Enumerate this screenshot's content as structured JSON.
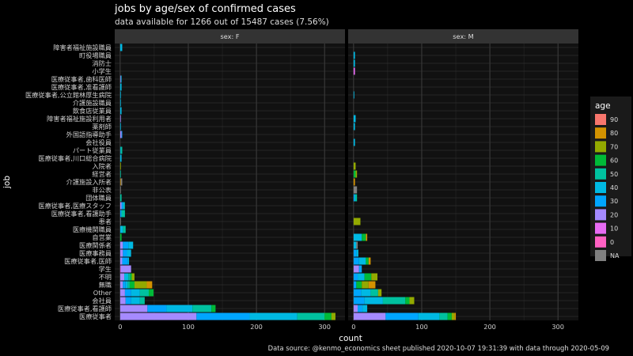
{
  "chart_data": {
    "type": "bar",
    "orientation": "horizontal",
    "stacked": true,
    "title": "jobs by age/sex of confirmed cases",
    "subtitle": "data available for 1266 out of 15487 cases (7.56%)",
    "xlabel": "count",
    "ylabel": "job",
    "caption": "Data source: @kenmo_economics sheet published 2020-10-07 19:31:39 with data through 2020-05-09",
    "xlim": [
      -8,
      330
    ],
    "x_ticks": [
      0,
      100,
      200,
      300
    ],
    "grid": true,
    "legend": {
      "title": "age",
      "position": "right",
      "entries": [
        {
          "label": "90",
          "color": "#F8766D"
        },
        {
          "label": "80",
          "color": "#D39200"
        },
        {
          "label": "70",
          "color": "#93AA00"
        },
        {
          "label": "60",
          "color": "#00BA38"
        },
        {
          "label": "50",
          "color": "#00C19F"
        },
        {
          "label": "40",
          "color": "#00B9E3"
        },
        {
          "label": "30",
          "color": "#00A5FF"
        },
        {
          "label": "20",
          "color": "#A58AFF"
        },
        {
          "label": "10",
          "color": "#E76BF3"
        },
        {
          "label": "0",
          "color": "#FF61C3"
        },
        {
          "label": "NA",
          "color": "#808080"
        }
      ]
    },
    "stack_order": [
      "0",
      "10",
      "20",
      "30",
      "40",
      "50",
      "60",
      "70",
      "80",
      "90",
      "NA"
    ],
    "categories": [
      "障害者福祉施設職員",
      "町役場職員",
      "消防士",
      "小学生",
      "医療従事者,歯科医師",
      "医療従事者,准看護師",
      "医療従事者,公立館林厚生病院",
      "介護施設職員",
      "飲食店従業員",
      "障害者福祉施設利用者",
      "薬剤師",
      "外国語指導助手",
      "会社役員",
      "パート従業員",
      "医療従事者,川口総合病院",
      "入院者",
      "経営者",
      "介護施設入所者",
      "非公表",
      "団体職員",
      "医療従事者,医療スタッフ",
      "医療従事者,看護助手",
      "患者",
      "医療機関職員",
      "自営業",
      "医療関係者",
      "医療事務員",
      "医療従事者,医師",
      "学生",
      "不明",
      "無職",
      "Other",
      "会社員",
      "医療従事者,看護師",
      "医療従事者"
    ],
    "panels": [
      {
        "label": "sex: F",
        "bars": [
          {
            "40": 3
          },
          {},
          {},
          {},
          {
            "20": 1,
            "40": 1
          },
          {
            "40": 2
          },
          {
            "40": 1
          },
          {
            "40": 1
          },
          {
            "40": 2
          },
          {
            "20": 1
          },
          {
            "40": 1
          },
          {
            "20": 2,
            "30": 1
          },
          {},
          {
            "40": 1,
            "50": 2
          },
          {
            "40": 2
          },
          {
            "70": 1
          },
          {
            "50": 1
          },
          {
            "80": 1,
            "NA": 2
          },
          {
            "NA": 1
          },
          {
            "50": 2
          },
          {
            "20": 2,
            "30": 2,
            "40": 2,
            "50": 1
          },
          {
            "30": 2,
            "50": 5
          },
          {
            "NA": 1
          },
          {
            "40": 4,
            "50": 4
          },
          {
            "60": 2
          },
          {
            "20": 4,
            "30": 8,
            "40": 7
          },
          {
            "20": 4,
            "30": 6,
            "40": 6
          },
          {
            "20": 3,
            "30": 8,
            "40": 2
          },
          {
            "10": 1,
            "20": 15
          },
          {
            "20": 6,
            "40": 6,
            "50": 3,
            "60": 2,
            "70": 4
          },
          {
            "20": 4,
            "30": 4,
            "40": 3,
            "50": 3,
            "60": 7,
            "70": 18,
            "80": 8
          },
          {
            "20": 7,
            "30": 9,
            "40": 13,
            "50": 13,
            "60": 7
          },
          {
            "20": 8,
            "30": 8,
            "40": 13,
            "50": 7
          },
          {
            "20": 40,
            "30": 28,
            "40": 38,
            "50": 28,
            "60": 6
          },
          {
            "20": 112,
            "30": 78,
            "40": 70,
            "50": 40,
            "60": 10,
            "70": 6
          }
        ]
      },
      {
        "label": "sex: M",
        "bars": [
          {},
          {
            "40": 2
          },
          {
            "40": 2
          },
          {
            "10": 2
          },
          {},
          {},
          {
            "40": 1
          },
          {},
          {},
          {
            "40": 3
          },
          {
            "40": 2
          },
          {},
          {
            "40": 2
          },
          {},
          {},
          {
            "70": 3
          },
          {
            "70": 2,
            "60": 3
          },
          {
            "80": 2
          },
          {
            "NA": 5
          },
          {
            "50": 3,
            "30": 2
          },
          {},
          {},
          {
            "70": 10
          },
          {},
          {
            "40": 12,
            "60": 6,
            "80": 2
          },
          {
            "40": 4,
            "NA": 2
          },
          {
            "30": 4,
            "40": 3
          },
          {
            "30": 8,
            "40": 10,
            "60": 4,
            "80": 3
          },
          {
            "20": 8,
            "30": 4
          },
          {
            "30": 6,
            "40": 10,
            "60": 10,
            "70": 9
          },
          {
            "30": 4,
            "60": 8,
            "70": 10,
            "80": 10
          },
          {
            "30": 11,
            "40": 14,
            "50": 11,
            "70": 5
          },
          {
            "30": 16,
            "40": 27,
            "50": 33,
            "60": 6,
            "70": 7
          },
          {
            "20": 6,
            "30": 7,
            "40": 7
          },
          {
            "20": 47,
            "30": 48,
            "40": 31,
            "50": 12,
            "60": 6,
            "70": 4,
            "80": 2
          }
        ]
      }
    ]
  }
}
